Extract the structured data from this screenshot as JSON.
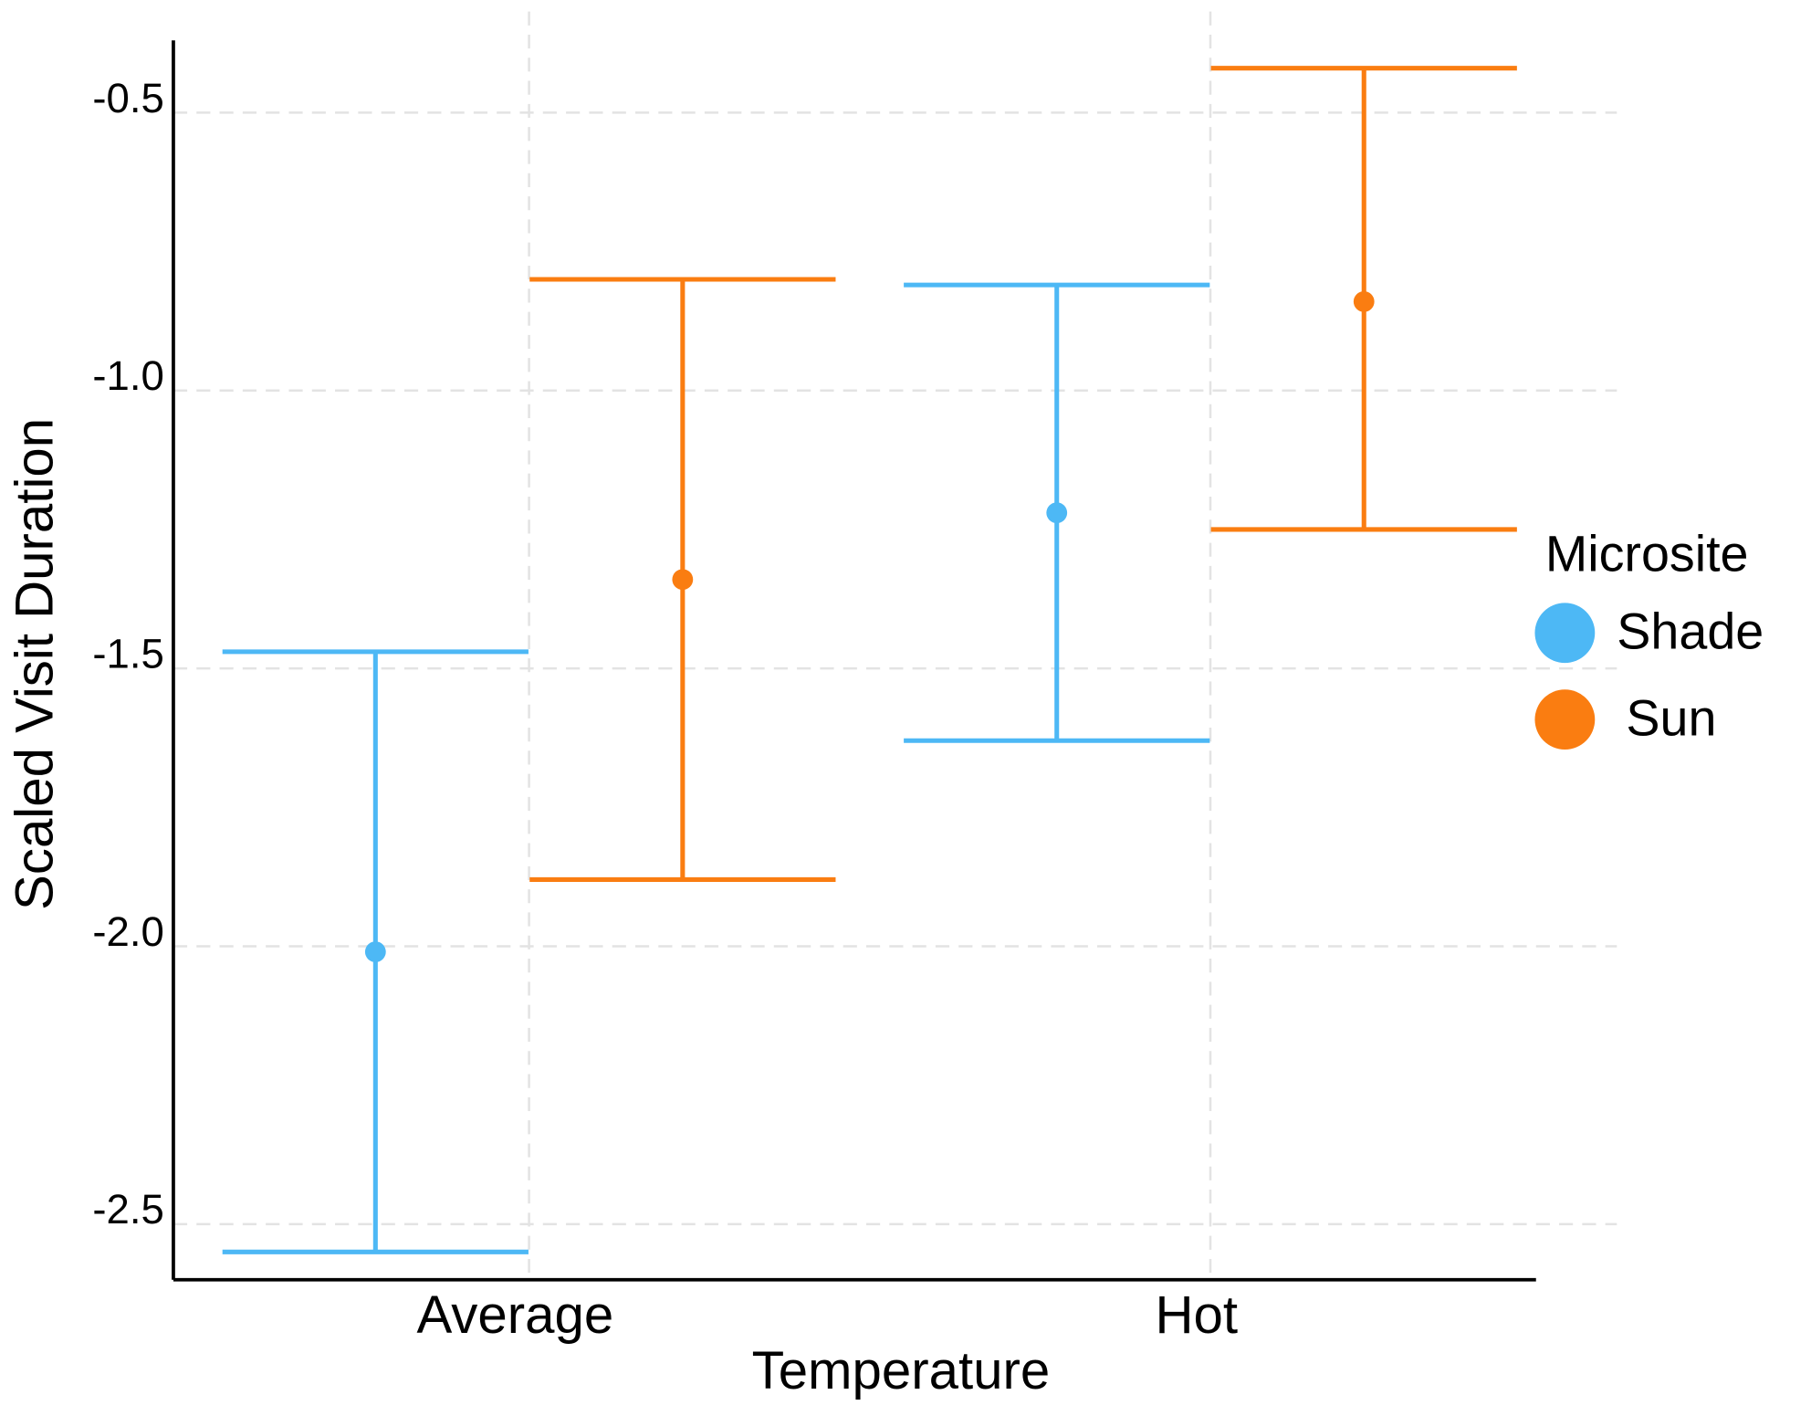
{
  "chart_data": {
    "type": "errorbar",
    "x_label": "Temperature",
    "y_label": "Scaled Visit Duration",
    "categories": [
      "Average",
      "Hot"
    ],
    "legend_title": "Microsite",
    "legend": "right",
    "grid": true,
    "ylim": [
      -2.6,
      -0.37
    ],
    "yticks": [
      -0.5,
      {
        "value": -1,
        "label": "-1.0"
      },
      -1.5,
      {
        "value": -2,
        "label": "-2.0"
      },
      -2.5
    ],
    "series": [
      {
        "name": "Shade",
        "color": "#4db8f5",
        "values": [
          -2.01,
          -1.22
        ],
        "lower": [
          -2.55,
          -1.63
        ],
        "upper": [
          -1.47,
          -0.81
        ]
      },
      {
        "name": "Sun",
        "color": "#fa7d11",
        "values": [
          -1.34,
          -0.84
        ],
        "lower": [
          -1.88,
          -1.25
        ],
        "upper": [
          -0.8,
          -0.42
        ]
      }
    ]
  }
}
